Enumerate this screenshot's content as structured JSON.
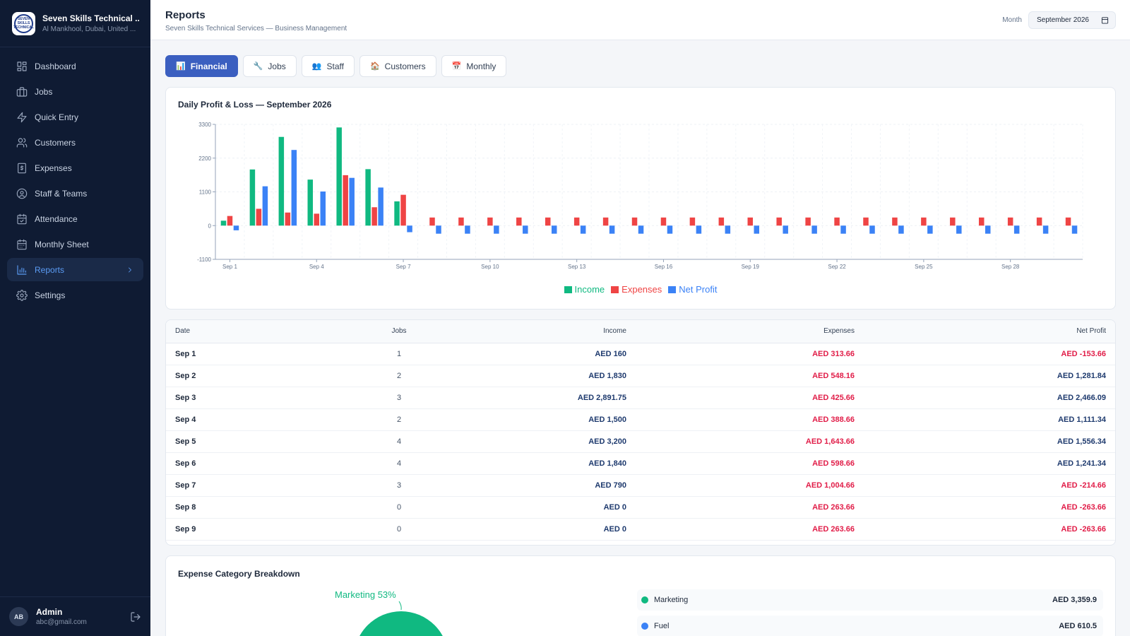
{
  "brand": {
    "logo_text": "SEVEN SKILLS TECHNICAL",
    "name": "Seven Skills Technical ...",
    "location": "Al Mankhool, Dubai, United ..."
  },
  "nav": [
    {
      "label": "Dashboard",
      "icon": "dashboard-icon"
    },
    {
      "label": "Jobs",
      "icon": "briefcase-icon"
    },
    {
      "label": "Quick Entry",
      "icon": "bolt-icon"
    },
    {
      "label": "Customers",
      "icon": "users-icon"
    },
    {
      "label": "Expenses",
      "icon": "dollar-icon"
    },
    {
      "label": "Staff & Teams",
      "icon": "user-circle-icon"
    },
    {
      "label": "Attendance",
      "icon": "calendar-check-icon"
    },
    {
      "label": "Monthly Sheet",
      "icon": "calendar-icon"
    },
    {
      "label": "Reports",
      "icon": "bar-chart-icon",
      "active": true
    },
    {
      "label": "Settings",
      "icon": "gear-icon"
    }
  ],
  "user": {
    "initials": "AB",
    "name": "Admin",
    "email": "abc@gmail.com"
  },
  "header": {
    "title": "Reports",
    "subtitle": "Seven Skills Technical Services — Business Management",
    "month_label": "Month",
    "month_value": "September 2026"
  },
  "tabs": [
    {
      "label": "Financial",
      "icon": "📊",
      "active": true
    },
    {
      "label": "Jobs",
      "icon": "🔧"
    },
    {
      "label": "Staff",
      "icon": "👥"
    },
    {
      "label": "Customers",
      "icon": "🏠"
    },
    {
      "label": "Monthly",
      "icon": "📅"
    }
  ],
  "colors": {
    "income": "#10b981",
    "expenses": "#ef4444",
    "net": "#3b82f6"
  },
  "chart_data": {
    "type": "bar",
    "title": "Daily Profit & Loss — September 2026",
    "ylim": [
      -1100,
      3300
    ],
    "yticks": [
      -1100,
      0,
      1100,
      2200,
      3300
    ],
    "categories": [
      "Sep 1",
      "Sep 2",
      "Sep 3",
      "Sep 4",
      "Sep 5",
      "Sep 6",
      "Sep 7",
      "Sep 8",
      "Sep 9",
      "Sep 10",
      "Sep 11",
      "Sep 12",
      "Sep 13",
      "Sep 14",
      "Sep 15",
      "Sep 16",
      "Sep 17",
      "Sep 18",
      "Sep 19",
      "Sep 20",
      "Sep 21",
      "Sep 22",
      "Sep 23",
      "Sep 24",
      "Sep 25",
      "Sep 26",
      "Sep 27",
      "Sep 28",
      "Sep 29",
      "Sep 30"
    ],
    "tick_labels": [
      "Sep 1",
      "Sep 4",
      "Sep 7",
      "Sep 10",
      "Sep 13",
      "Sep 16",
      "Sep 19",
      "Sep 22",
      "Sep 25",
      "Sep 28"
    ],
    "series": [
      {
        "name": "Income",
        "values": [
          160,
          1830,
          2891.75,
          1500,
          3200,
          1840,
          790,
          0,
          0,
          0,
          0,
          0,
          0,
          0,
          0,
          0,
          0,
          0,
          0,
          0,
          0,
          0,
          0,
          0,
          0,
          0,
          0,
          0,
          0,
          0
        ]
      },
      {
        "name": "Expenses",
        "values": [
          313.66,
          548.16,
          425.66,
          388.66,
          1643.66,
          598.66,
          1004.66,
          263.66,
          263.66,
          263.66,
          263.66,
          263.66,
          263.66,
          263.66,
          263.66,
          263.66,
          263.66,
          263.66,
          263.66,
          263.66,
          263.66,
          263.66,
          263.66,
          263.66,
          263.66,
          263.66,
          263.66,
          263.66,
          263.66,
          263.66
        ]
      },
      {
        "name": "Net Profit",
        "values": [
          -153.66,
          1281.84,
          2466.09,
          1111.34,
          1556.34,
          1241.34,
          -214.66,
          -263.66,
          -263.66,
          -263.66,
          -263.66,
          -263.66,
          -263.66,
          -263.66,
          -263.66,
          -263.66,
          -263.66,
          -263.66,
          -263.66,
          -263.66,
          -263.66,
          -263.66,
          -263.66,
          -263.66,
          -263.66,
          -263.66,
          -263.66,
          -263.66,
          -263.66,
          -263.66
        ]
      }
    ],
    "legend": [
      "Income",
      "Expenses",
      "Net Profit"
    ],
    "legend_position": "bottom"
  },
  "table": {
    "headers": [
      "Date",
      "Jobs",
      "Income",
      "Expenses",
      "Net Profit"
    ],
    "rows": [
      {
        "date": "Sep 1",
        "jobs": "1",
        "income": "AED 160",
        "expenses": "AED 313.66",
        "net": "AED -153.66",
        "neg": true
      },
      {
        "date": "Sep 2",
        "jobs": "2",
        "income": "AED 1,830",
        "expenses": "AED 548.16",
        "net": "AED 1,281.84",
        "neg": false
      },
      {
        "date": "Sep 3",
        "jobs": "3",
        "income": "AED 2,891.75",
        "expenses": "AED 425.66",
        "net": "AED 2,466.09",
        "neg": false
      },
      {
        "date": "Sep 4",
        "jobs": "2",
        "income": "AED 1,500",
        "expenses": "AED 388.66",
        "net": "AED 1,111.34",
        "neg": false
      },
      {
        "date": "Sep 5",
        "jobs": "4",
        "income": "AED 3,200",
        "expenses": "AED 1,643.66",
        "net": "AED 1,556.34",
        "neg": false
      },
      {
        "date": "Sep 6",
        "jobs": "4",
        "income": "AED 1,840",
        "expenses": "AED 598.66",
        "net": "AED 1,241.34",
        "neg": false
      },
      {
        "date": "Sep 7",
        "jobs": "3",
        "income": "AED 790",
        "expenses": "AED 1,004.66",
        "net": "AED -214.66",
        "neg": true
      },
      {
        "date": "Sep 8",
        "jobs": "0",
        "income": "AED 0",
        "expenses": "AED 263.66",
        "net": "AED -263.66",
        "neg": true
      },
      {
        "date": "Sep 9",
        "jobs": "0",
        "income": "AED 0",
        "expenses": "AED 263.66",
        "net": "AED -263.66",
        "neg": true
      }
    ]
  },
  "expense_breakdown": {
    "title": "Expense Category Breakdown",
    "pie_label": "Marketing 53%",
    "categories": [
      {
        "name": "Marketing",
        "value": "AED 3,359.9",
        "color": "#10b981"
      },
      {
        "name": "Fuel",
        "value": "AED 610.5",
        "color": "#3b82f6"
      }
    ]
  }
}
